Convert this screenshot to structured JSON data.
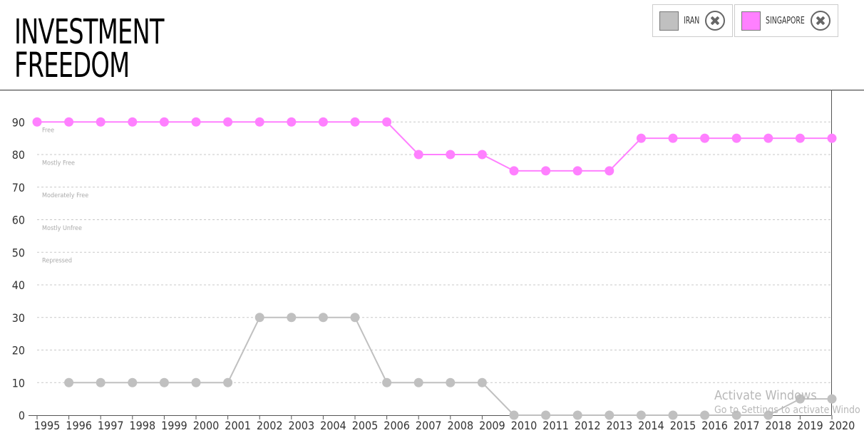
{
  "chart_data": {
    "type": "line",
    "title_lines": [
      "INVESTMENT",
      "FREEDOM"
    ],
    "x": [
      "1995",
      "1996",
      "1997",
      "1998",
      "1999",
      "2000",
      "2001",
      "2002",
      "2003",
      "2004",
      "2005",
      "2006",
      "2007",
      "2008",
      "2009",
      "2010",
      "2011",
      "2012",
      "2013",
      "2014",
      "2015",
      "2016",
      "2017",
      "2018",
      "2019",
      "2020"
    ],
    "ylim": [
      0,
      90
    ],
    "yticks": [
      0,
      10,
      20,
      30,
      40,
      50,
      60,
      70,
      80,
      90
    ],
    "grid": true,
    "legend_position": "top-right",
    "category_bands": [
      {
        "label": "Free",
        "y": 87.5
      },
      {
        "label": "Mostly Free",
        "y": 77.5
      },
      {
        "label": "Moderately Free",
        "y": 67.5
      },
      {
        "label": "Mostly Unfree",
        "y": 57.5
      },
      {
        "label": "Repressed",
        "y": 47.5
      }
    ],
    "series": [
      {
        "name": "IRAN",
        "color": "#c0c0c0",
        "values": [
          null,
          10,
          10,
          10,
          10,
          10,
          10,
          30,
          30,
          30,
          30,
          10,
          10,
          10,
          10,
          0,
          0,
          0,
          0,
          0,
          0,
          0,
          0,
          0,
          5,
          5
        ]
      },
      {
        "name": "SINGAPORE",
        "color": "#ff80ff",
        "values": [
          90,
          90,
          90,
          90,
          90,
          90,
          90,
          90,
          90,
          90,
          90,
          90,
          80,
          80,
          80,
          75,
          75,
          75,
          75,
          85,
          85,
          85,
          85,
          85,
          85,
          85
        ]
      }
    ]
  },
  "legend": {
    "close_icon": "close-circle-icon",
    "items": [
      {
        "label": "IRAN",
        "color": "#c0c0c0"
      },
      {
        "label": "SINGAPORE",
        "color": "#ff80ff"
      }
    ]
  },
  "watermark": {
    "line1": "Activate Windows",
    "line2": "Go to Settings to activate Windo"
  }
}
